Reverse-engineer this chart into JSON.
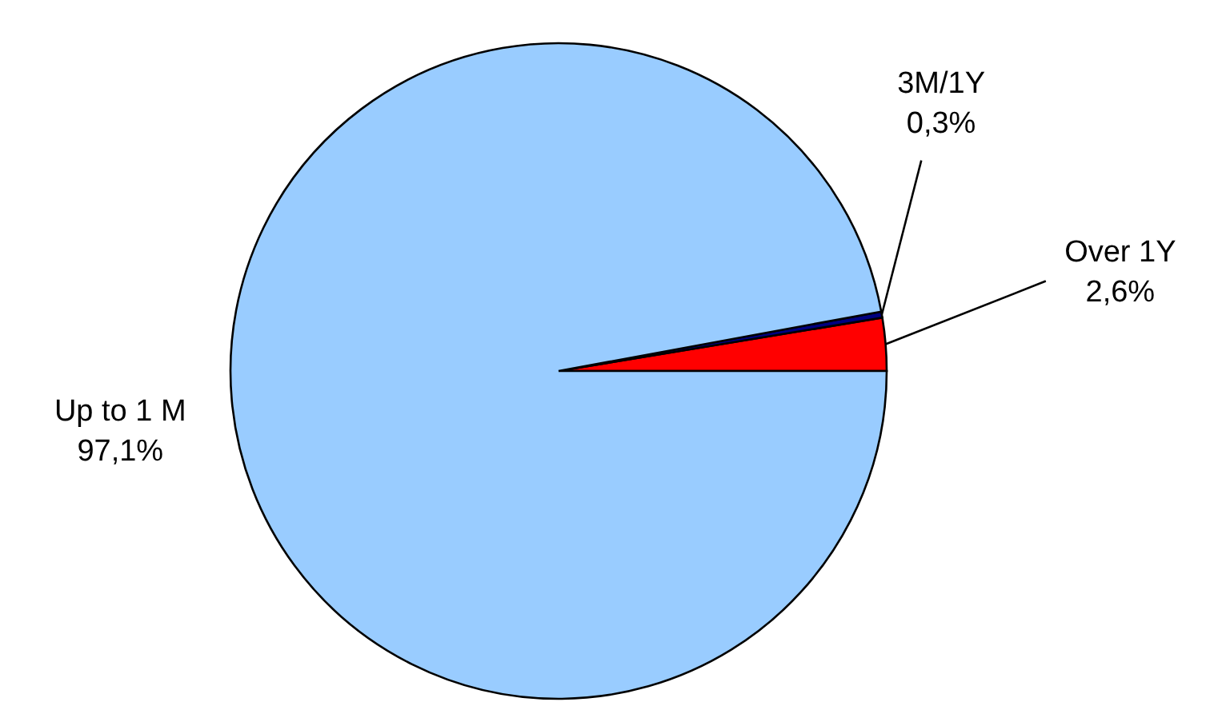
{
  "chart_data": {
    "type": "pie",
    "categories": [
      "Over 1Y",
      "3M/1Y",
      "Up to 1 M"
    ],
    "values": [
      2.6,
      0.3,
      97.1
    ],
    "colors": [
      "#ff0000",
      "#000080",
      "#99ccff"
    ],
    "value_labels": [
      "2,6%",
      "0,3%",
      "97,1%"
    ]
  }
}
